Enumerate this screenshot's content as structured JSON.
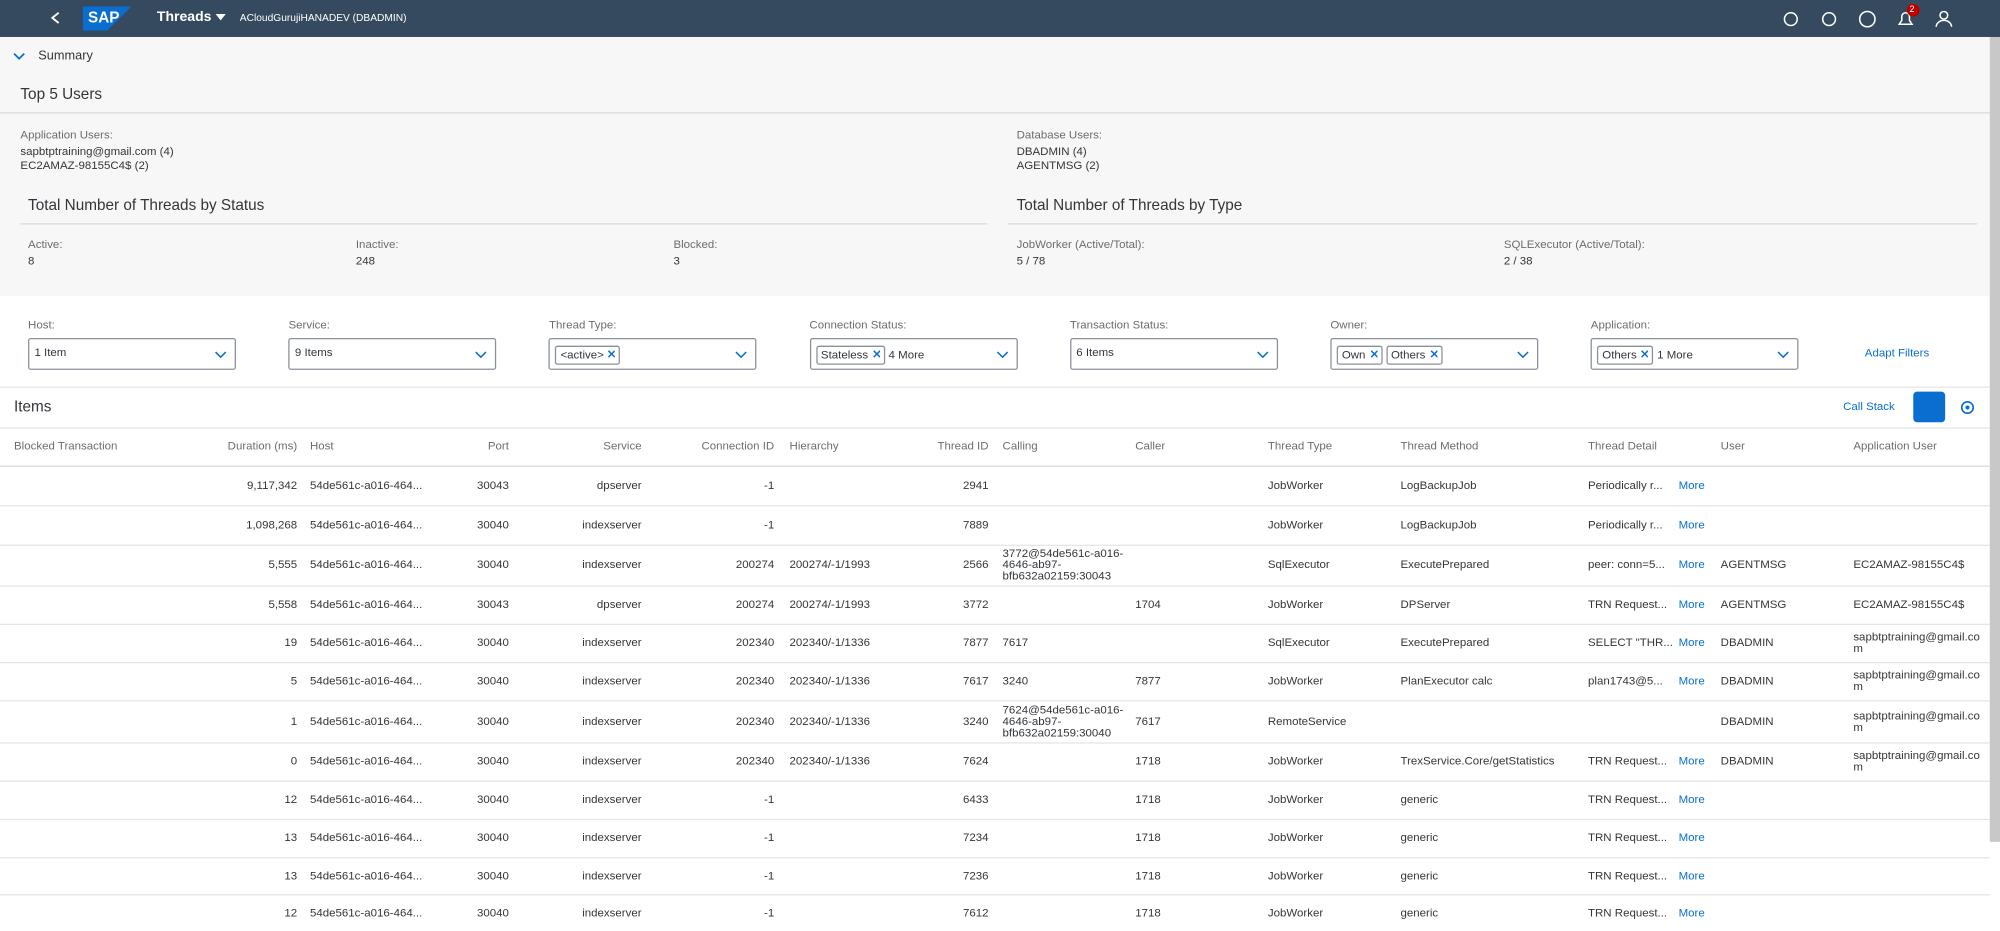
{
  "header": {
    "title": "Threads",
    "system": "ACloudGurujiHANADEV (DBADMIN)",
    "logo": "SAP",
    "notifications": "2"
  },
  "summary": {
    "title": "Summary",
    "top_users": {
      "title": "Top 5 Users",
      "application_label": "Application Users:",
      "application_users": [
        "sapbtptraining@gmail.com (4)",
        "EC2AMAZ-98155C4$ (2)"
      ],
      "database_label": "Database Users:",
      "database_users": [
        "DBADMIN (4)",
        "AGENTMSG (2)"
      ]
    },
    "by_status": {
      "title": "Total Number of Threads by Status",
      "stats": [
        {
          "label": "Active:",
          "value": "8"
        },
        {
          "label": "Inactive:",
          "value": "248"
        },
        {
          "label": "Blocked:",
          "value": "3"
        }
      ]
    },
    "by_type": {
      "title": "Total Number of Threads by Type",
      "stats": [
        {
          "label": "JobWorker (Active/Total):",
          "value": "5 / 78"
        },
        {
          "label": "SQLExecutor (Active/Total):",
          "value": "2 / 38"
        }
      ]
    }
  },
  "filters": [
    {
      "label": "Host:",
      "text": "1 Item"
    },
    {
      "label": "Service:",
      "text": "9 Items"
    },
    {
      "label": "Thread Type:",
      "tokens": [
        "<active>"
      ]
    },
    {
      "label": "Connection Status:",
      "tokens": [
        "Stateless"
      ],
      "text": "4 More"
    },
    {
      "label": "Transaction Status:",
      "text": "6 Items"
    },
    {
      "label": "Owner:",
      "tokens": [
        "Own",
        "Others"
      ]
    },
    {
      "label": "Application:",
      "tokens": [
        "Others"
      ],
      "text": "1 More"
    }
  ],
  "adapt_filters": "Adapt Filters",
  "toolbar": {
    "title": "Items",
    "call_stack": "Call Stack"
  },
  "table": {
    "columns": [
      "Blocked Transaction",
      "Duration (ms)",
      "Host",
      "Port",
      "Service",
      "Connection ID",
      "Hierarchy",
      "Thread ID",
      "Calling",
      "Caller",
      "Thread Type",
      "Thread Method",
      "Thread Detail",
      "User",
      "Application User"
    ],
    "rows": [
      [
        null,
        "9,117,342",
        "54de561c-a016-464...",
        "30043",
        "dpserver",
        "-1",
        null,
        "2941",
        null,
        null,
        "JobWorker",
        "LogBackupJob",
        "Periodically r...",
        null,
        null,
        "More"
      ],
      [
        null,
        "1,098,268",
        "54de561c-a016-464...",
        "30040",
        "indexserver",
        "-1",
        null,
        "7889",
        null,
        null,
        "JobWorker",
        "LogBackupJob",
        "Periodically r...",
        null,
        null,
        "More"
      ],
      [
        null,
        "5,555",
        "54de561c-a016-464...",
        "30040",
        "indexserver",
        "200274",
        "200274/-1/1993",
        "2566",
        "3772@54de561c-a016-4646-ab97-bfb632a02159:30043",
        null,
        "SqlExecutor",
        "ExecutePrepared",
        "peer: conn=5...",
        "AGENTMSG",
        "EC2AMAZ-98155C4$",
        "More"
      ],
      [
        null,
        "5,558",
        "54de561c-a016-464...",
        "30043",
        "dpserver",
        "200274",
        "200274/-1/1993",
        "3772",
        null,
        "1704",
        "JobWorker",
        "DPServer",
        "TRN Request...",
        "AGENTMSG",
        "EC2AMAZ-98155C4$",
        "More"
      ],
      [
        null,
        "19",
        "54de561c-a016-464...",
        "30040",
        "indexserver",
        "202340",
        "202340/-1/1336",
        "7877",
        "7617",
        null,
        "SqlExecutor",
        "ExecutePrepared",
        "SELECT \"THR...",
        "DBADMIN",
        "sapbtptraining@gmail.com",
        "More"
      ],
      [
        null,
        "5",
        "54de561c-a016-464...",
        "30040",
        "indexserver",
        "202340",
        "202340/-1/1336",
        "7617",
        "3240",
        "7877",
        "JobWorker",
        "PlanExecutor calc",
        "plan1743@5...",
        "DBADMIN",
        "sapbtptraining@gmail.com",
        "More"
      ],
      [
        null,
        "1",
        "54de561c-a016-464...",
        "30040",
        "indexserver",
        "202340",
        "202340/-1/1336",
        "3240",
        "7624@54de561c-a016-4646-ab97-bfb632a02159:30040",
        "7617",
        "RemoteService",
        null,
        null,
        "DBADMIN",
        "sapbtptraining@gmail.com",
        null
      ],
      [
        null,
        "0",
        "54de561c-a016-464...",
        "30040",
        "indexserver",
        "202340",
        "202340/-1/1336",
        "7624",
        null,
        "1718",
        "JobWorker",
        "TrexService.Core/getStatistics",
        "TRN Request...",
        "DBADMIN",
        "sapbtptraining@gmail.com",
        "More"
      ],
      [
        null,
        "12",
        "54de561c-a016-464...",
        "30040",
        "indexserver",
        "-1",
        null,
        "6433",
        null,
        "1718",
        "JobWorker",
        "generic",
        "TRN Request...",
        null,
        null,
        "More"
      ],
      [
        null,
        "13",
        "54de561c-a016-464...",
        "30040",
        "indexserver",
        "-1",
        null,
        "7234",
        null,
        "1718",
        "JobWorker",
        "generic",
        "TRN Request...",
        null,
        null,
        "More"
      ],
      [
        null,
        "13",
        "54de561c-a016-464...",
        "30040",
        "indexserver",
        "-1",
        null,
        "7236",
        null,
        "1718",
        "JobWorker",
        "generic",
        "TRN Request...",
        null,
        null,
        "More"
      ],
      [
        null,
        "12",
        "54de561c-a016-464...",
        "30040",
        "indexserver",
        "-1",
        null,
        "7612",
        null,
        "1718",
        "JobWorker",
        "generic",
        "TRN Request...",
        null,
        null,
        "More"
      ]
    ]
  }
}
